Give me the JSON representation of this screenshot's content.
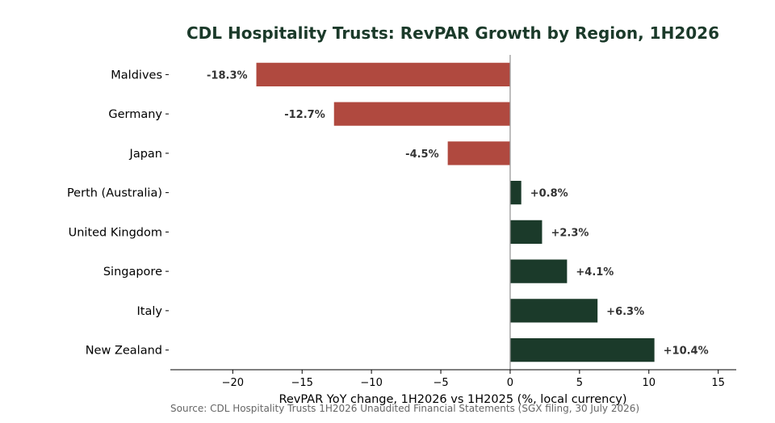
{
  "chart_data": {
    "type": "bar",
    "orientation": "horizontal",
    "title": "CDL Hospitality Trusts: RevPAR Growth by Region, 1H2026",
    "xlabel": "RevPAR YoY change, 1H2026 vs 1H2025 (%, local currency)",
    "ylabel": "",
    "source": "Source: CDL Hospitality Trusts 1H2026 Unaudited Financial Statements (SGX filing, 30 July 2026)",
    "categories": [
      "Maldives",
      "Germany",
      "Japan",
      "Perth (Australia)",
      "United Kingdom",
      "Singapore",
      "Italy",
      "New Zealand"
    ],
    "values": [
      -18.3,
      -12.7,
      -4.5,
      0.8,
      2.3,
      4.1,
      6.3,
      10.4
    ],
    "data_labels": [
      "-18.3%",
      "-12.7%",
      "-4.5%",
      "+0.8%",
      "+2.3%",
      "+4.1%",
      "+6.3%",
      "+10.4%"
    ],
    "xticks": [
      -20,
      -15,
      -10,
      -5,
      0,
      5,
      10,
      15
    ],
    "xtick_labels": [
      "−20",
      "−15",
      "−10",
      "−5",
      "0",
      "5",
      "10",
      "15"
    ],
    "xlim": [
      -24.5,
      16.3
    ],
    "colors": {
      "negative": "#b0493f",
      "positive": "#1b3a2a",
      "title": "#1b3a2a",
      "zero_line": "#999999",
      "label_text": "#333333",
      "source_text": "#666666"
    },
    "grid": false,
    "legend": "none"
  }
}
